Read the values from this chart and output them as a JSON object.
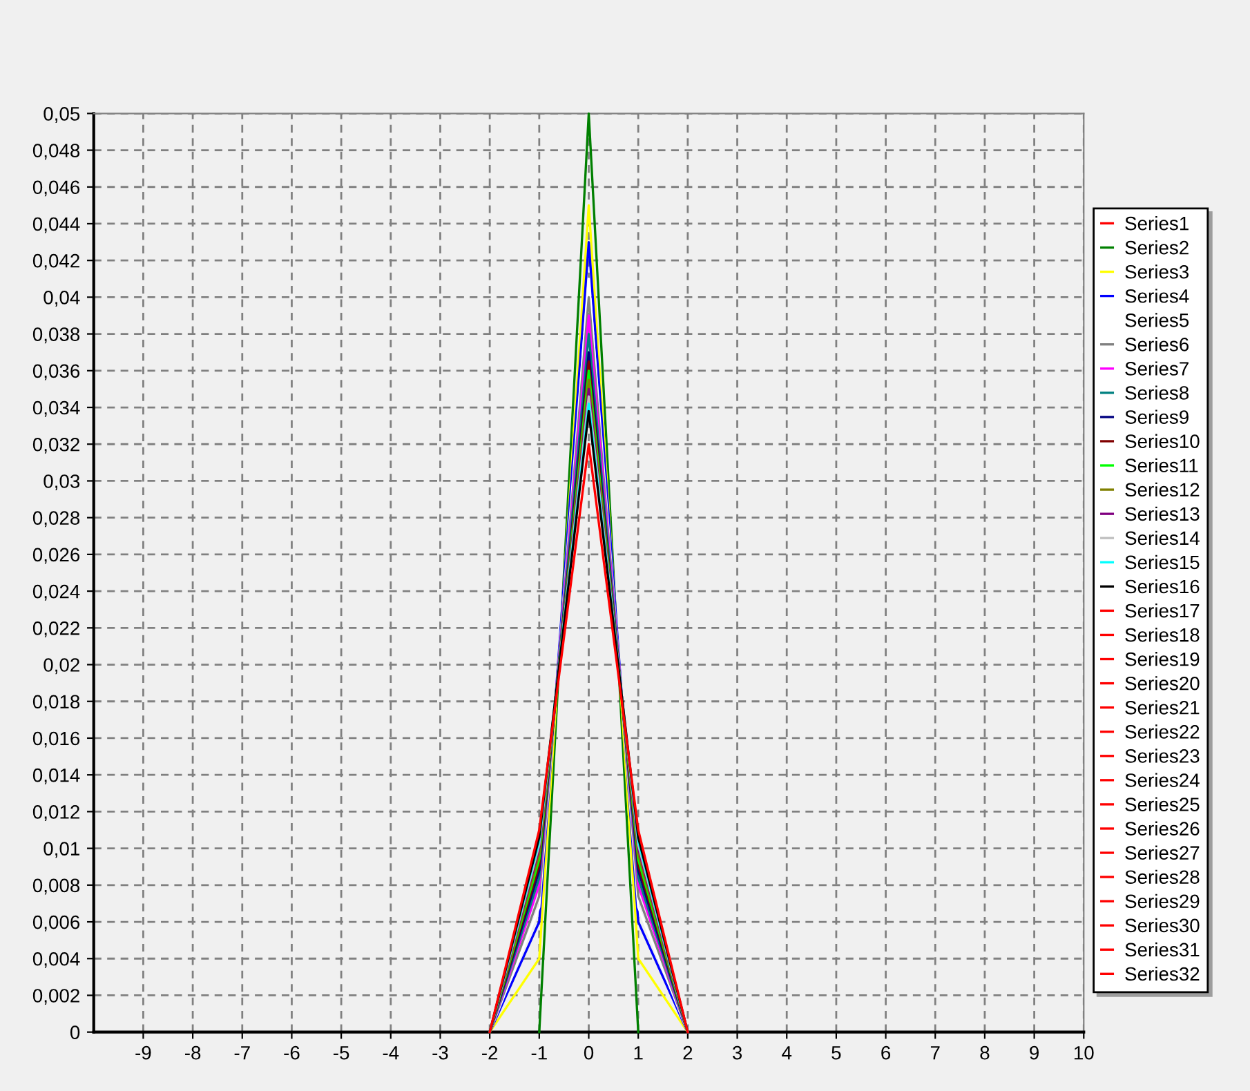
{
  "chart_data": {
    "type": "line",
    "xlim": [
      -10,
      10
    ],
    "xticks": [
      -9,
      -8,
      -7,
      -6,
      -5,
      -4,
      -3,
      -2,
      -1,
      0,
      1,
      2,
      3,
      4,
      5,
      6,
      7,
      8,
      9,
      10
    ],
    "ylim": [
      0,
      0.05
    ],
    "yticks": [
      0,
      {
        "value": 0.002,
        "label": "0,002"
      },
      {
        "value": 0.004,
        "label": "0,004"
      },
      {
        "value": 0.006,
        "label": "0,006"
      },
      {
        "value": 0.008,
        "label": "0,008"
      },
      {
        "value": 0.01,
        "label": "0,01"
      },
      {
        "value": 0.012,
        "label": "0,012"
      },
      {
        "value": 0.014,
        "label": "0,014"
      },
      {
        "value": 0.016,
        "label": "0,016"
      },
      {
        "value": 0.018,
        "label": "0,018"
      },
      {
        "value": 0.02,
        "label": "0,02"
      },
      {
        "value": 0.022,
        "label": "0,022"
      },
      {
        "value": 0.024,
        "label": "0,024"
      },
      {
        "value": 0.026,
        "label": "0,026"
      },
      {
        "value": 0.028,
        "label": "0,028"
      },
      {
        "value": 0.03,
        "label": "0,03"
      },
      {
        "value": 0.032,
        "label": "0,032"
      },
      {
        "value": 0.034,
        "label": "0,034"
      },
      {
        "value": 0.036,
        "label": "0,036"
      },
      {
        "value": 0.038,
        "label": "0,038"
      },
      {
        "value": 0.04,
        "label": "0,04"
      },
      {
        "value": 0.042,
        "label": "0,042"
      },
      {
        "value": 0.044,
        "label": "0,044"
      },
      {
        "value": 0.046,
        "label": "0,046"
      },
      {
        "value": 0.048,
        "label": "0,048"
      },
      {
        "value": 0.05,
        "label": "0,05"
      }
    ],
    "x": [
      -2,
      -1,
      0,
      1,
      2
    ],
    "grid": true,
    "legend": "right",
    "marker": "none",
    "line_style": "solid",
    "series": [
      {
        "name": "Series1",
        "color": "#ff0000",
        "values": [
          null,
          null,
          null,
          null,
          null
        ]
      },
      {
        "name": "Series2",
        "color": "#008000",
        "x": [
          -1,
          0,
          1
        ],
        "values": [
          0,
          0.05,
          0
        ]
      },
      {
        "name": "Series3",
        "color": "#ffff00",
        "values": [
          0,
          0.004,
          0.045,
          0.004,
          0
        ]
      },
      {
        "name": "Series4",
        "color": "#0000ff",
        "values": [
          0,
          0.006,
          0.043,
          0.006,
          0
        ]
      },
      {
        "name": "Series5",
        "color": "#ffffff",
        "values": [
          0,
          0.0068,
          0.041,
          0.0068,
          0
        ]
      },
      {
        "name": "Series6",
        "color": "#808080",
        "values": [
          0,
          0.0074,
          0.04,
          0.0074,
          0
        ]
      },
      {
        "name": "Series7",
        "color": "#ff00ff",
        "values": [
          0,
          0.008,
          0.039,
          0.008,
          0
        ]
      },
      {
        "name": "Series8",
        "color": "#008080",
        "values": [
          0,
          0.0084,
          0.038,
          0.0084,
          0
        ]
      },
      {
        "name": "Series9",
        "color": "#000080",
        "values": [
          0,
          0.0088,
          0.037,
          0.0088,
          0
        ]
      },
      {
        "name": "Series10",
        "color": "#800000",
        "values": [
          0,
          0.0091,
          0.0365,
          0.0091,
          0
        ]
      },
      {
        "name": "Series11",
        "color": "#00ff00",
        "values": [
          0,
          0.0094,
          0.036,
          0.0094,
          0
        ]
      },
      {
        "name": "Series12",
        "color": "#808000",
        "values": [
          0,
          0.0097,
          0.0355,
          0.0097,
          0
        ]
      },
      {
        "name": "Series13",
        "color": "#800080",
        "values": [
          0,
          0.01,
          0.035,
          0.01,
          0
        ]
      },
      {
        "name": "Series14",
        "color": "#c0c0c0",
        "values": [
          0,
          0.0102,
          0.0346,
          0.0102,
          0
        ]
      },
      {
        "name": "Series15",
        "color": "#00ffff",
        "values": [
          0,
          0.0104,
          0.0342,
          0.0104,
          0
        ]
      },
      {
        "name": "Series16",
        "color": "#000000",
        "values": [
          0,
          0.0106,
          0.0338,
          0.0106,
          0
        ]
      },
      {
        "name": "Series17",
        "color": "#ff0000",
        "values": [
          null,
          null,
          null,
          null,
          null
        ]
      },
      {
        "name": "Series18",
        "color": "#ff0000",
        "values": [
          null,
          null,
          null,
          null,
          null
        ]
      },
      {
        "name": "Series19",
        "color": "#ff0000",
        "values": [
          null,
          null,
          null,
          null,
          null
        ]
      },
      {
        "name": "Series20",
        "color": "#ff0000",
        "values": [
          null,
          null,
          null,
          null,
          null
        ]
      },
      {
        "name": "Series21",
        "color": "#ff0000",
        "values": [
          null,
          null,
          null,
          null,
          null
        ]
      },
      {
        "name": "Series22",
        "color": "#ff0000",
        "values": [
          null,
          null,
          null,
          null,
          null
        ]
      },
      {
        "name": "Series23",
        "color": "#ff0000",
        "values": [
          null,
          null,
          null,
          null,
          null
        ]
      },
      {
        "name": "Series24",
        "color": "#ff0000",
        "values": [
          null,
          null,
          null,
          null,
          null
        ]
      },
      {
        "name": "Series25",
        "color": "#ff0000",
        "values": [
          null,
          null,
          null,
          null,
          null
        ]
      },
      {
        "name": "Series26",
        "color": "#ff0000",
        "values": [
          null,
          null,
          null,
          null,
          null
        ]
      },
      {
        "name": "Series27",
        "color": "#ff0000",
        "values": [
          null,
          null,
          null,
          null,
          null
        ]
      },
      {
        "name": "Series28",
        "color": "#ff0000",
        "values": [
          null,
          null,
          null,
          null,
          null
        ]
      },
      {
        "name": "Series29",
        "color": "#ff0000",
        "values": [
          null,
          null,
          null,
          null,
          null
        ]
      },
      {
        "name": "Series30",
        "color": "#ff0000",
        "values": [
          null,
          null,
          null,
          null,
          null
        ]
      },
      {
        "name": "Series31",
        "color": "#ff0000",
        "values": [
          null,
          null,
          null,
          null,
          null
        ]
      },
      {
        "name": "Series32",
        "color": "#ff0000",
        "values": [
          0,
          0.011,
          0.032,
          0.011,
          0
        ]
      }
    ]
  }
}
